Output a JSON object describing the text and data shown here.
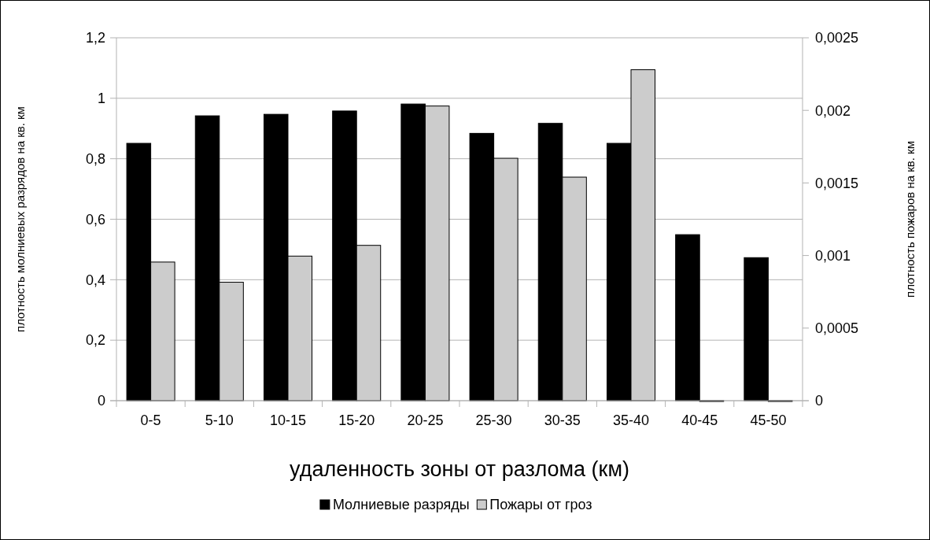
{
  "chart_data": {
    "type": "bar",
    "xlabel": "удаленность зоны от разлома (км)",
    "ylabel": "плотность молниевых разрядов на кв. км",
    "y2label": "плотность пожаров на кв. км",
    "categories": [
      "0-5",
      "5-10",
      "10-15",
      "15-20",
      "20-25",
      "25-30",
      "30-35",
      "35-40",
      "40-45",
      "45-50"
    ],
    "series": [
      {
        "name": "Молниевые разряды",
        "color": "#000000",
        "values": [
          0.851,
          0.942,
          0.947,
          0.958,
          0.981,
          0.884,
          0.917,
          0.851,
          0.549,
          0.473
        ]
      },
      {
        "name": "Пожары от гроз",
        "color": "#cccccc",
        "axis": "y2",
        "values": [
          0.000955,
          0.000816,
          0.000996,
          0.00107,
          0.00203,
          0.00167,
          0.00154,
          0.00228,
          0,
          0
        ]
      }
    ],
    "ylim": [
      0,
      1.2
    ],
    "yticks": [
      {
        "value": 0,
        "label": "0"
      },
      {
        "value": 0.2,
        "label": "0,2"
      },
      {
        "value": 0.4,
        "label": "0,4"
      },
      {
        "value": 0.6,
        "label": "0,6"
      },
      {
        "value": 0.8,
        "label": "0,8"
      },
      {
        "value": 1,
        "label": "1"
      },
      {
        "value": 1.2,
        "label": "1,2"
      }
    ],
    "y2lim": [
      0,
      0.0025
    ],
    "y2ticks": [
      {
        "value": 0,
        "label": "0"
      },
      {
        "value": 0.0005,
        "label": "0,0005"
      },
      {
        "value": 0.001,
        "label": "0,001"
      },
      {
        "value": 0.0015,
        "label": "0,0015"
      },
      {
        "value": 0.002,
        "label": "0,002"
      },
      {
        "value": 0.0025,
        "label": "0,0025"
      }
    ],
    "grid": "y",
    "legend": "bottom"
  }
}
